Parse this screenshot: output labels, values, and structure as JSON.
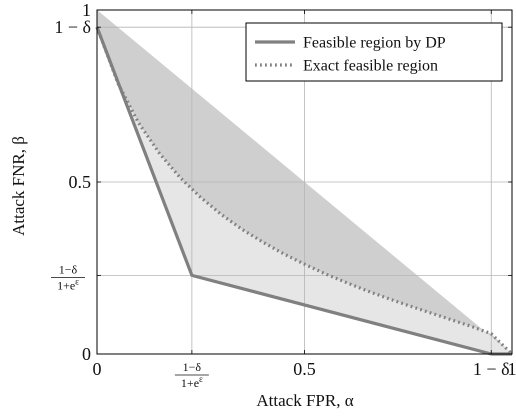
{
  "chart_data": {
    "type": "area",
    "xlabel": "Attack FPR, α",
    "ylabel": "Attack FNR, β",
    "xlim": [
      0,
      1
    ],
    "ylim": [
      0,
      1
    ],
    "grid": true,
    "legend_position": "top-right",
    "params": {
      "delta": 0.05,
      "epsilon": 1.15
    },
    "x_ticks": [
      {
        "value": 0,
        "label": "0"
      },
      {
        "value": 0.2286,
        "label_num": "1−δ",
        "label_den": "1+e^ε",
        "fraction": true
      },
      {
        "value": 0.5,
        "label": "0.5"
      },
      {
        "value": 0.95,
        "label": "1 − δ"
      },
      {
        "value": 1,
        "label": "1"
      }
    ],
    "y_ticks": [
      {
        "value": 0,
        "label": "0"
      },
      {
        "value": 0.2286,
        "label_num": "1−δ",
        "label_den": "1+e^ε",
        "fraction": true
      },
      {
        "value": 0.5,
        "label": "0.5"
      },
      {
        "value": 0.95,
        "label": "1 − δ"
      },
      {
        "value": 1,
        "label": "1"
      }
    ],
    "series": [
      {
        "name": "Feasible region by DP",
        "style": "solid",
        "color": "#808080",
        "x": [
          0,
          0.2286,
          0.95,
          1
        ],
        "y": [
          0.95,
          0.2286,
          0,
          0
        ]
      },
      {
        "name": "Exact feasible region",
        "style": "dotted",
        "color": "#808080",
        "x": [
          0,
          0.05,
          0.1,
          0.15,
          0.2,
          0.25,
          0.3,
          0.35,
          0.4,
          0.45,
          0.5,
          0.55,
          0.6,
          0.65,
          0.7,
          0.75,
          0.8,
          0.85,
          0.9,
          0.95,
          1
        ],
        "y": [
          0.95,
          0.788,
          0.672,
          0.584,
          0.513,
          0.455,
          0.405,
          0.362,
          0.325,
          0.291,
          0.261,
          0.233,
          0.208,
          0.184,
          0.162,
          0.141,
          0.121,
          0.101,
          0.081,
          0.059,
          0
        ]
      }
    ],
    "shaded_region": {
      "fill_dark": "#cfcfcf",
      "fill_light": "#e6e6e6"
    }
  }
}
